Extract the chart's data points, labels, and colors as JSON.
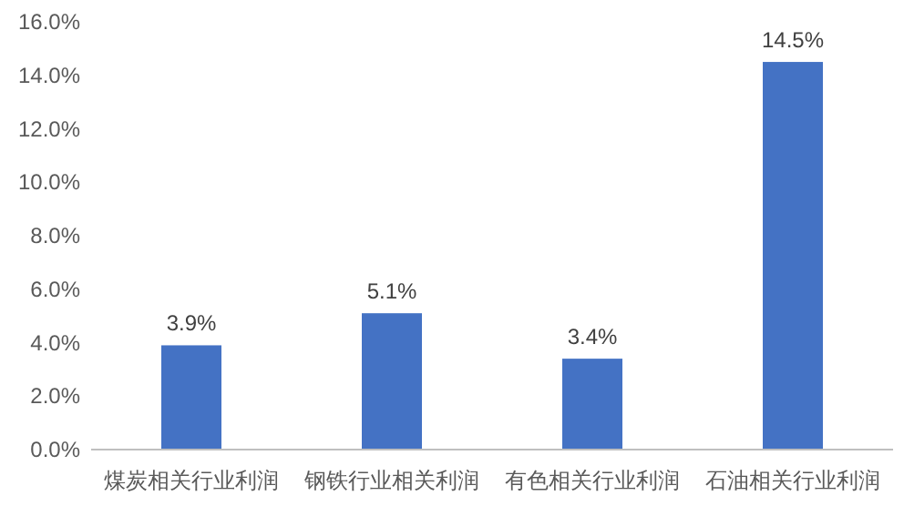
{
  "chart_data": {
    "type": "bar",
    "categories": [
      "煤炭相关行业利润",
      "钢铁行业相关利润",
      "有色相关行业利润",
      "石油相关行业利润"
    ],
    "values": [
      3.9,
      5.1,
      3.4,
      14.5
    ],
    "value_labels": [
      "3.9%",
      "5.1%",
      "3.4%",
      "14.5%"
    ],
    "color": "#4472c4",
    "ylim": [
      0,
      16
    ],
    "yticks": [
      {
        "value": 0,
        "label": "0.0%"
      },
      {
        "value": 2,
        "label": "2.0%"
      },
      {
        "value": 4,
        "label": "4.0%"
      },
      {
        "value": 6,
        "label": "6.0%"
      },
      {
        "value": 8,
        "label": "8.0%"
      },
      {
        "value": 10,
        "label": "10.0%"
      },
      {
        "value": 12,
        "label": "12.0%"
      },
      {
        "value": 14,
        "label": "14.0%"
      },
      {
        "value": 16,
        "label": "16.0%"
      }
    ]
  }
}
